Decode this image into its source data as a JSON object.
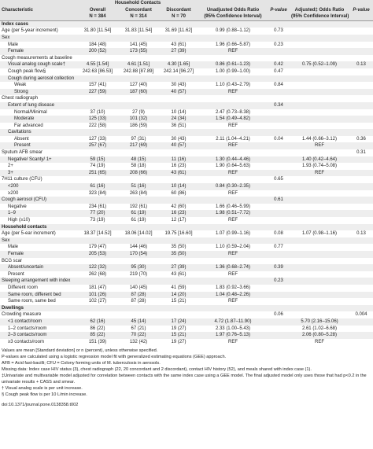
{
  "header": {
    "group": "Household Contacts",
    "columns": [
      "Characteristic",
      "Overall",
      "Concordant",
      "Discordant",
      "Unadjusted Odds Ratio",
      "P-value",
      "Adjusted‡ Odds Ratio",
      "P-value"
    ],
    "counts": [
      "N = 384",
      "N = 314",
      "N = 70",
      "(95% Confidence Interval)",
      "(95% Confidence Interval)"
    ]
  },
  "table": {
    "sections": [
      {
        "title": "Index cases",
        "rows": [
          {
            "label": "Age (per 5-year increment)",
            "cells": [
              "31.80 [11.54]",
              "31.83 [11.54]",
              "31.69 [11.62]",
              "0.99 (0.88–1.12)",
              "0.73",
              null,
              null
            ]
          },
          {
            "label": "Sex",
            "items": [
              {
                "label": "Male",
                "cells": [
                  "184 (48)",
                  "141 (45)",
                  "43 (61)",
                  "1.96 (0.66–5.87)",
                  "0.23",
                  null,
                  null
                ]
              },
              {
                "label": "Female",
                "cells": [
                  "200 (52)",
                  "173 (55)",
                  "27 (39)",
                  "REF",
                  null,
                  null,
                  null
                ]
              }
            ]
          },
          {
            "label": "Cough measurements at baseline",
            "items": [
              {
                "label": "Visual analog cough scale†",
                "cells": [
                  "4.55 [1.54]",
                  "4.61 [1.51]",
                  "4.30 [1.65]",
                  "0.86 (0.61–1.23)",
                  "0.42",
                  "0.75 (0.52–1.09)",
                  "0.13"
                ]
              },
              {
                "label": "Cough peak flow§",
                "cells": [
                  "242.63 [86.53]",
                  "242.88 [87.89]",
                  "242.14 [96.27]",
                  "1.00 (0.99–1.00)",
                  "0.47",
                  null,
                  null
                ]
              },
              {
                "label": "Cough during aerosol collection",
                "items": [
                  {
                    "label": "Weak",
                    "cells": [
                      "157 (41)",
                      "127 (40)",
                      "30 (43)",
                      "1.10 (0.43–2.79)",
                      "0.84",
                      null,
                      null
                    ]
                  },
                  {
                    "label": "Strong",
                    "cells": [
                      "227 (59)",
                      "187 (60)",
                      "40 (57)",
                      "REF",
                      null,
                      null,
                      null
                    ]
                  }
                ]
              }
            ]
          },
          {
            "label": "Chest radiograph",
            "items": [
              {
                "label": "Extent of lung disease",
                "cells": [
                  null,
                  null,
                  null,
                  null,
                  "0.34",
                  null,
                  null
                ],
                "items": [
                  {
                    "label": "Normal/Minimal",
                    "cells": [
                      "37 (10)",
                      "27 (9)",
                      "10 (14)",
                      "2.47 (0.73–8.38)",
                      null,
                      null,
                      null
                    ]
                  },
                  {
                    "label": "Moderate",
                    "cells": [
                      "125 (33)",
                      "101 (32)",
                      "24 (34)",
                      "1.54 (0.49–4.82)",
                      null,
                      null,
                      null
                    ]
                  },
                  {
                    "label": "Far advanced",
                    "cells": [
                      "222 (58)",
                      "186 (59)",
                      "36 (51)",
                      "REF",
                      null,
                      null,
                      null
                    ]
                  }
                ]
              },
              {
                "label": "Cavitations",
                "items": [
                  {
                    "label": "Absent",
                    "cells": [
                      "127 (33)",
                      "97 (31)",
                      "30 (43)",
                      "2.11 (1.04–4.21)",
                      "0.04",
                      "1.44 (0.66–3.12)",
                      "0.36"
                    ]
                  },
                  {
                    "label": "Present",
                    "cells": [
                      "257 (67)",
                      "217 (69)",
                      "40 (57)",
                      "REF",
                      null,
                      "REF",
                      null
                    ]
                  }
                ]
              }
            ]
          },
          {
            "label": "Sputum AFB smear",
            "cells": [
              null,
              null,
              null,
              null,
              null,
              null,
              "0.31"
            ],
            "items": [
              {
                "label": "Negative/ Scanty/ 1+",
                "cells": [
                  "59 (15)",
                  "48 (15)",
                  "11 (16)",
                  "1.30 (0.44–4.46)",
                  null,
                  "1.40 (0.42–4.64)",
                  null
                ]
              },
              {
                "label": "2+",
                "cells": [
                  "74 (19)",
                  "58 (18)",
                  "16 (23)",
                  "1.90 (0.64–5.63)",
                  null,
                  "1.93 (0.74–5.08)",
                  null
                ]
              },
              {
                "label": "3+",
                "cells": [
                  "251 (65)",
                  "208 (66)",
                  "43 (61)",
                  "REF",
                  null,
                  "REF",
                  null
                ]
              }
            ]
          },
          {
            "label": "7H11 culture (CFU)",
            "cells": [
              null,
              null,
              null,
              null,
              "0.65",
              null,
              null
            ],
            "items": [
              {
                "label": "<200",
                "cells": [
                  "61 (16)",
                  "51 (16)",
                  "10 (14)",
                  "0.84 (0.30–2.35)",
                  null,
                  null,
                  null
                ]
              },
              {
                "label": "≥200",
                "cells": [
                  "323 (84)",
                  "263 (84)",
                  "60 (86)",
                  "REF",
                  null,
                  null,
                  null
                ]
              }
            ]
          },
          {
            "label": "Cough aerosol (CFU)",
            "cells": [
              null,
              null,
              null,
              null,
              "0.61",
              null,
              null
            ],
            "items": [
              {
                "label": "Negative",
                "cells": [
                  "234 (61)",
                  "192 (61)",
                  "42 (60)",
                  "1.66 (0.46–5.99)",
                  null,
                  null,
                  null
                ]
              },
              {
                "label": "1–9",
                "cells": [
                  "77 (20)",
                  "61 (19)",
                  "16 (23)",
                  "1.98 (0.51–7.72)",
                  null,
                  null,
                  null
                ]
              },
              {
                "label": "High (≥10)",
                "cells": [
                  "73 (19)",
                  "61 (19)",
                  "12 (17)",
                  "REF",
                  null,
                  null,
                  null
                ]
              }
            ]
          }
        ]
      },
      {
        "title": "Household contacts",
        "rows": [
          {
            "label": "Age (per 5-ear increment)",
            "cells": [
              "18.37 [14.52]",
              "18.06 [14.02]",
              "19.75 [16.60]",
              "1.07 (0.99–1.16)",
              "0.08",
              "1.07 (0.98–1.16)",
              "0.13"
            ]
          },
          {
            "label": "Sex",
            "items": [
              {
                "label": "Male",
                "cells": [
                  "179 (47)",
                  "144 (46)",
                  "35 (50)",
                  "1.10 (0.59–2.04)",
                  "0.77",
                  null,
                  null
                ]
              },
              {
                "label": "Female",
                "cells": [
                  "205 (53)",
                  "170 (54)",
                  "35 (50)",
                  "REF",
                  null,
                  null,
                  null
                ]
              }
            ]
          },
          {
            "label": "BCG scar",
            "items": [
              {
                "label": "Absent/uncertain",
                "cells": [
                  "122 (32)",
                  "95 (30)",
                  "27 (39)",
                  "1.36 (0.68–2.74)",
                  "0.39",
                  null,
                  null
                ]
              },
              {
                "label": "Present",
                "cells": [
                  "262 (68)",
                  "219 (70)",
                  "43 (61)",
                  "REF",
                  null,
                  null,
                  null
                ]
              }
            ]
          },
          {
            "label": "Sleeping arrangement with index",
            "cells": [
              null,
              null,
              null,
              null,
              "0.23",
              null,
              null
            ],
            "items": [
              {
                "label": "Different room",
                "cells": [
                  "181 (47)",
                  "140 (45)",
                  "41 (59)",
                  "1.83 (0.92–3.66)",
                  null,
                  null,
                  null
                ]
              },
              {
                "label": "Same room, different bed",
                "cells": [
                  "101 (26)",
                  "87 (28)",
                  "14 (20)",
                  "1.04 (0.48–2.26)",
                  null,
                  null,
                  null
                ]
              },
              {
                "label": "Same room, same bed",
                "cells": [
                  "102 (27)",
                  "87 (28)",
                  "15 (21)",
                  "REF",
                  null,
                  null,
                  null
                ]
              }
            ]
          }
        ]
      },
      {
        "title": "Dwellings",
        "rows": [
          {
            "label": "Crowding measure",
            "cells": [
              null,
              null,
              null,
              null,
              "0.06",
              null,
              "0.004"
            ],
            "items": [
              {
                "label": "<1 contact/room",
                "cells": [
                  "62 (16)",
                  "45 (14)",
                  "17 (24)",
                  "4.72 (1.87–11.90)",
                  null,
                  "5.70 (2.16–15.06)",
                  null
                ]
              },
              {
                "label": "1–2 contacts/room",
                "cells": [
                  "86 (22)",
                  "67 (21)",
                  "19 (27)",
                  "2.33 (1.00–5.43)",
                  null,
                  "2.61 (1.02–6.68)",
                  null
                ]
              },
              {
                "label": "2–3 contacts/room",
                "cells": [
                  "85 (22)",
                  "70 (22)",
                  "15 (21)",
                  "1.97 (0.76–5.13)",
                  null,
                  "2.06 (0.80–5.28)",
                  null
                ]
              },
              {
                "label": "≥3 contacts/room",
                "cells": [
                  "151 (39)",
                  "132 (42)",
                  "19 (27)",
                  "REF",
                  null,
                  "REF",
                  null
                ]
              }
            ]
          }
        ]
      }
    ]
  },
  "footnotes": [
    "Values are mean [Standard deviation] or n (percent), unless otherwise specified.",
    "P-values are calculated using a logistic regression model fit with generalized estimating equations (GEE) approach.",
    "AFB = Acid fast-bacilli; CFU = Colony forming units of M. tuberculosis in aerosols.",
    "Missing data: Index case HIV status (3), chest radiograph (22, 20 concordant and 2 discordant), contact HIV history (52), and meals shared with index case (1).",
    "‡Univariate and multivariable model adjusted for correlation between contacts with the same index case using a GEE model. The final adjusted model only uses those that had p<0.2 in the univariate results + CASS and smear.",
    "† Visual analog scale is per unit increase.",
    "§ Cough peak flow is per 10 L/min increase."
  ],
  "doi": "doi:10.1371/journal.pone.0138358.t002"
}
